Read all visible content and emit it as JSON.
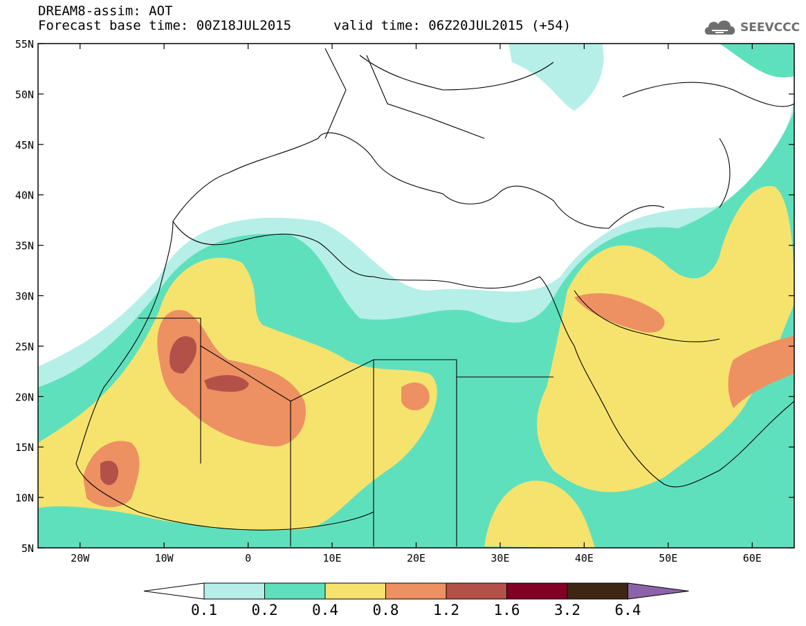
{
  "header": {
    "line1": "DREAM8-assim: AOT",
    "base_time_label": "Forecast base time: 00Z18JUL2015",
    "valid_time_label": "valid time: 06Z20JUL2015 (+54)"
  },
  "logo": {
    "text": "SEEVCCC",
    "icon": "cloud-logo-icon"
  },
  "map": {
    "lon_range": [
      -25,
      65
    ],
    "lat_range": [
      5,
      55
    ],
    "lat_ticks": [
      "55N",
      "50N",
      "45N",
      "40N",
      "35N",
      "30N",
      "25N",
      "20N",
      "15N",
      "10N",
      "5N"
    ],
    "lon_ticks": [
      "20W",
      "10W",
      "0",
      "10E",
      "20E",
      "30E",
      "40E",
      "50E",
      "60E"
    ],
    "background": "#ffffff",
    "border_color": "#000000"
  },
  "legend": {
    "boundaries": [
      "0.1",
      "0.2",
      "0.4",
      "0.8",
      "1.2",
      "1.6",
      "3.2",
      "6.4"
    ],
    "colors": [
      "#ffffff",
      "#b6efe7",
      "#5fe0bc",
      "#f6e36e",
      "#ed9162",
      "#b35148",
      "#830025",
      "#3d2714",
      "#8d63a8"
    ]
  }
}
